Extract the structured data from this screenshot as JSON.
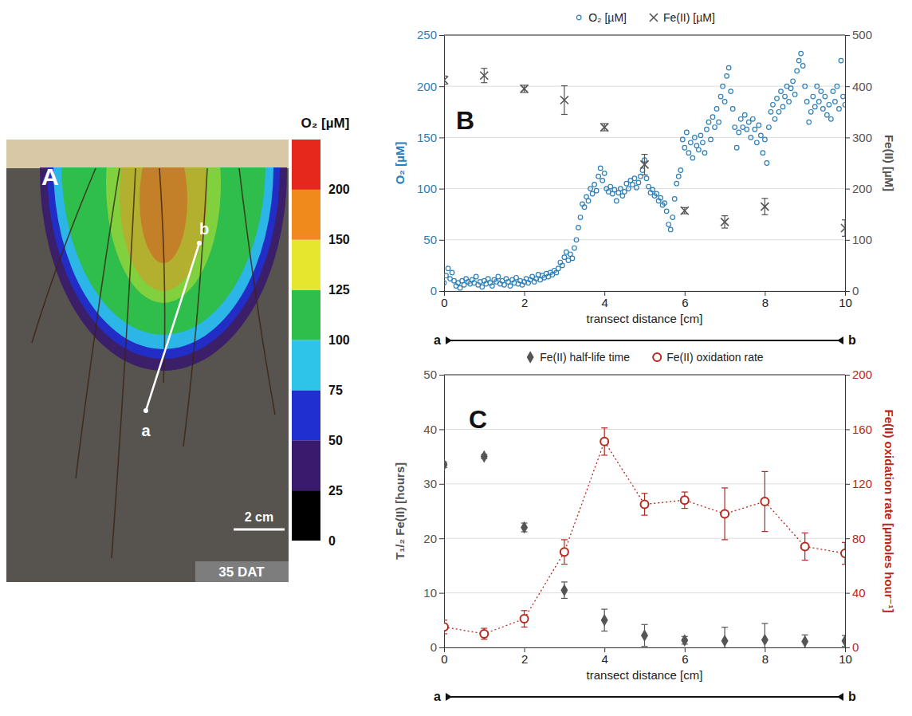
{
  "chart_data": [
    {
      "type": "image",
      "panel": "A",
      "transect_labels": [
        "a",
        "b"
      ],
      "scale_bar": "2 cm",
      "stamp": "35 DAT",
      "colorbar": {
        "title": "O₂ [µM]",
        "ticks": [
          0,
          25,
          50,
          75,
          100,
          125,
          150,
          200
        ],
        "colors": [
          "#000000",
          "#3a1a6c",
          "#1f2fd0",
          "#2ec4ea",
          "#2fbe4c",
          "#e6e62e",
          "#f08a1c",
          "#e6281c"
        ]
      }
    },
    {
      "type": "scatter",
      "panel": "B",
      "x_label": "transect distance [cm]",
      "y_label": "O₂ [µM]",
      "y2_label": "Fe(II) [µM]",
      "transect_labels": [
        "a",
        "b"
      ],
      "xlim": [
        0,
        10
      ],
      "xticks": [
        0,
        2,
        4,
        6,
        8,
        10
      ],
      "ylim": [
        0,
        250
      ],
      "yticks": [
        0,
        50,
        100,
        150,
        200,
        250
      ],
      "y2lim": [
        0,
        500
      ],
      "y2ticks": [
        0,
        100,
        200,
        300,
        400,
        500
      ],
      "grid": true,
      "legend": "top",
      "series": [
        {
          "name": "O₂ [µM]",
          "color": "#2c7fb8",
          "marker": "circle",
          "x": [
            0,
            0.05,
            0.1,
            0.15,
            0.2,
            0.25,
            0.3,
            0.35,
            0.4,
            0.45,
            0.5,
            0.55,
            0.6,
            0.65,
            0.7,
            0.75,
            0.8,
            0.85,
            0.9,
            0.95,
            1,
            1.05,
            1.1,
            1.15,
            1.2,
            1.25,
            1.3,
            1.35,
            1.4,
            1.45,
            1.5,
            1.55,
            1.6,
            1.65,
            1.7,
            1.75,
            1.8,
            1.85,
            1.9,
            1.95,
            2,
            2.05,
            2.1,
            2.15,
            2.2,
            2.25,
            2.3,
            2.35,
            2.4,
            2.45,
            2.5,
            2.55,
            2.6,
            2.65,
            2.7,
            2.75,
            2.8,
            2.85,
            2.9,
            2.95,
            3,
            3.05,
            3.1,
            3.15,
            3.2,
            3.25,
            3.3,
            3.35,
            3.4,
            3.45,
            3.5,
            3.55,
            3.6,
            3.65,
            3.7,
            3.75,
            3.8,
            3.85,
            3.9,
            3.95,
            4,
            4.05,
            4.1,
            4.15,
            4.2,
            4.25,
            4.3,
            4.35,
            4.4,
            4.45,
            4.5,
            4.55,
            4.6,
            4.65,
            4.7,
            4.75,
            4.8,
            4.85,
            4.9,
            4.95,
            5,
            5.05,
            5.1,
            5.15,
            5.2,
            5.25,
            5.3,
            5.35,
            5.4,
            5.45,
            5.5,
            5.55,
            5.6,
            5.65,
            5.7,
            5.75,
            5.8,
            5.85,
            5.9,
            5.95,
            6,
            6.05,
            6.1,
            6.15,
            6.2,
            6.25,
            6.3,
            6.35,
            6.4,
            6.45,
            6.5,
            6.55,
            6.6,
            6.65,
            6.7,
            6.75,
            6.8,
            6.85,
            6.9,
            6.95,
            7,
            7.05,
            7.1,
            7.15,
            7.2,
            7.25,
            7.3,
            7.35,
            7.4,
            7.45,
            7.5,
            7.55,
            7.6,
            7.65,
            7.7,
            7.75,
            7.8,
            7.85,
            7.9,
            7.95,
            8,
            8.05,
            8.1,
            8.15,
            8.2,
            8.25,
            8.3,
            8.35,
            8.4,
            8.45,
            8.5,
            8.55,
            8.6,
            8.65,
            8.7,
            8.75,
            8.8,
            8.85,
            8.9,
            8.95,
            9,
            9.05,
            9.1,
            9.15,
            9.2,
            9.25,
            9.3,
            9.35,
            9.4,
            9.45,
            9.5,
            9.55,
            9.6,
            9.65,
            9.7,
            9.75,
            9.8,
            9.85,
            9.9,
            9.95,
            10
          ],
          "values": [
            8,
            15,
            22,
            12,
            18,
            10,
            5,
            8,
            3,
            10,
            6,
            12,
            9,
            7,
            11,
            8,
            14,
            6,
            9,
            4,
            10,
            7,
            12,
            8,
            5,
            11,
            9,
            14,
            7,
            10,
            6,
            12,
            9,
            5,
            11,
            8,
            13,
            7,
            10,
            6,
            9,
            12,
            8,
            11,
            14,
            9,
            12,
            16,
            11,
            15,
            13,
            17,
            14,
            18,
            16,
            20,
            18,
            22,
            28,
            25,
            33,
            38,
            30,
            36,
            32,
            42,
            50,
            62,
            72,
            85,
            82,
            92,
            88,
            100,
            95,
            104,
            98,
            112,
            120,
            108,
            115,
            100,
            97,
            102,
            95,
            99,
            88,
            96,
            100,
            93,
            97,
            105,
            100,
            108,
            104,
            110,
            101,
            106,
            112,
            118,
            128,
            110,
            102,
            96,
            99,
            93,
            95,
            88,
            91,
            84,
            86,
            78,
            65,
            60,
            72,
            90,
            105,
            112,
            118,
            148,
            140,
            155,
            135,
            145,
            130,
            150,
            142,
            138,
            152,
            145,
            135,
            158,
            165,
            148,
            170,
            160,
            178,
            165,
            190,
            200,
            185,
            210,
            218,
            195,
            178,
            160,
            140,
            155,
            168,
            160,
            172,
            158,
            165,
            150,
            168,
            158,
            145,
            162,
            152,
            135,
            148,
            125,
            160,
            175,
            182,
            168,
            188,
            175,
            195,
            180,
            190,
            200,
            185,
            198,
            205,
            192,
            215,
            225,
            232,
            220,
            200,
            185,
            165,
            175,
            190,
            180,
            200,
            185,
            195,
            178,
            190,
            172,
            182,
            168,
            195,
            185,
            200,
            178,
            225,
            190,
            182
          ]
        },
        {
          "name": "Fe(II) [µM]",
          "color": "#555555",
          "marker": "x",
          "axis": "y2",
          "x": [
            0,
            1,
            2,
            3,
            4,
            5,
            6,
            7,
            8,
            10
          ],
          "values": [
            412,
            421,
            395,
            373,
            320,
            247,
            157,
            135,
            165,
            123
          ],
          "errors": [
            8,
            14,
            7,
            28,
            7,
            20,
            6,
            12,
            16,
            16
          ]
        }
      ]
    },
    {
      "type": "scatter",
      "panel": "C",
      "x_label": "transect distance [cm]",
      "y_label": "T₁/₂ Fe(II) [hours]",
      "y2_label": "Fe(II) oxidation rate [µmoles hour⁻¹]",
      "transect_labels": [
        "a",
        "b"
      ],
      "xlim": [
        0,
        10
      ],
      "xticks": [
        0,
        2,
        4,
        6,
        8,
        10
      ],
      "ylim": [
        0,
        50
      ],
      "yticks": [
        0,
        10,
        20,
        30,
        40,
        50
      ],
      "y2lim": [
        0,
        200
      ],
      "y2ticks": [
        0,
        40,
        80,
        120,
        160,
        200
      ],
      "grid": true,
      "legend": "top",
      "series": [
        {
          "name": "Fe(II) half-life time",
          "color": "#555555",
          "marker": "diamond",
          "x": [
            0,
            1,
            2,
            3,
            4,
            5,
            6,
            7,
            8,
            9,
            10
          ],
          "values": [
            33.5,
            35,
            22,
            10.5,
            5,
            2.2,
            1.3,
            1.2,
            1.4,
            1.1,
            1.2
          ],
          "errors": [
            0.5,
            0.4,
            0.8,
            1.5,
            2,
            2,
            0.7,
            2.5,
            3,
            1.2,
            1
          ]
        },
        {
          "name": "Fe(II) oxidation rate",
          "color": "#b5281e",
          "marker": "circle",
          "type": "line",
          "line_style": "dotted",
          "axis": "y2",
          "x": [
            0,
            1,
            2,
            3,
            4,
            5,
            6,
            7,
            8,
            9,
            10
          ],
          "values": [
            15,
            10,
            21,
            70,
            151,
            105,
            108,
            98,
            107,
            74,
            69
          ],
          "errors": [
            5,
            4,
            6,
            9,
            10,
            8,
            6,
            19,
            22,
            10,
            8
          ]
        }
      ]
    }
  ]
}
